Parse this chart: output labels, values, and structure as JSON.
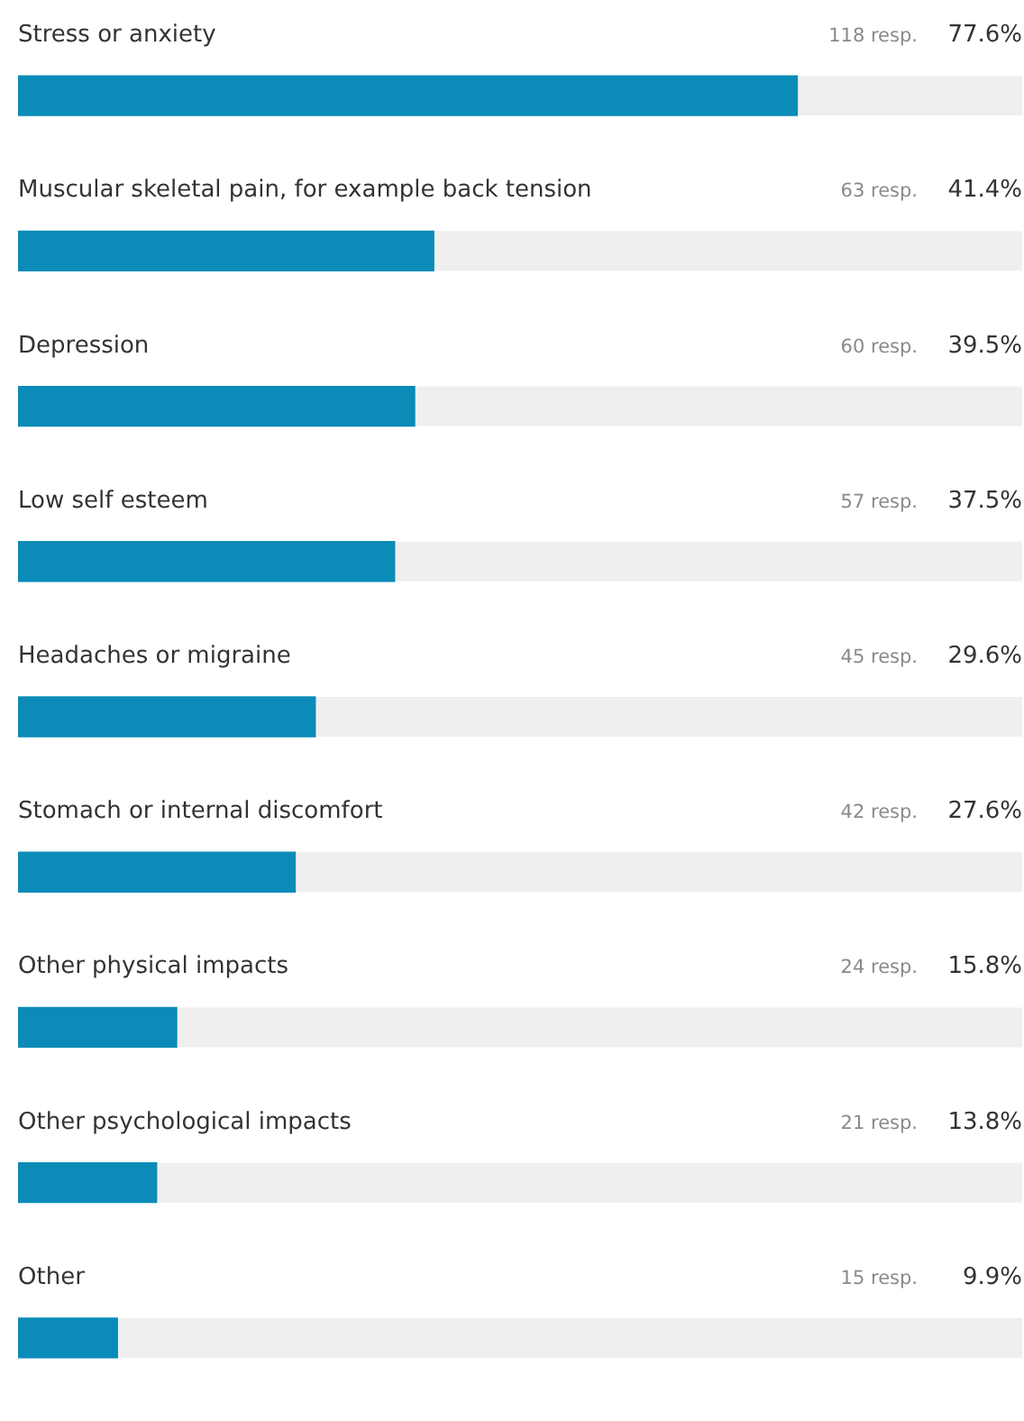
{
  "chart_data": {
    "type": "bar",
    "orientation": "horizontal",
    "categories": [
      "Stress or anxiety",
      "Muscular skeletal pain, for example back tension",
      "Depression",
      "Low self esteem",
      "Headaches or migraine",
      "Stomach or internal discomfort",
      "Other physical impacts",
      "Other psychological impacts",
      "Other"
    ],
    "values": [
      77.6,
      41.4,
      39.5,
      37.5,
      29.6,
      27.6,
      15.8,
      13.8,
      9.9
    ],
    "color": "#0b8bb8",
    "xlim": [
      0,
      100
    ],
    "tick_labels": "y",
    "value_labels": [
      "77.6%",
      "41.4%",
      "39.5%",
      "37.5%",
      "29.6%",
      "27.6%",
      "15.8%",
      "13.8%",
      "9.9%"
    ],
    "annotations": [
      "118 resp.",
      "63 resp.",
      "60 resp.",
      "57 resp.",
      "45 resp.",
      "42 resp.",
      "24 resp.",
      "21 resp.",
      "15 resp."
    ]
  }
}
